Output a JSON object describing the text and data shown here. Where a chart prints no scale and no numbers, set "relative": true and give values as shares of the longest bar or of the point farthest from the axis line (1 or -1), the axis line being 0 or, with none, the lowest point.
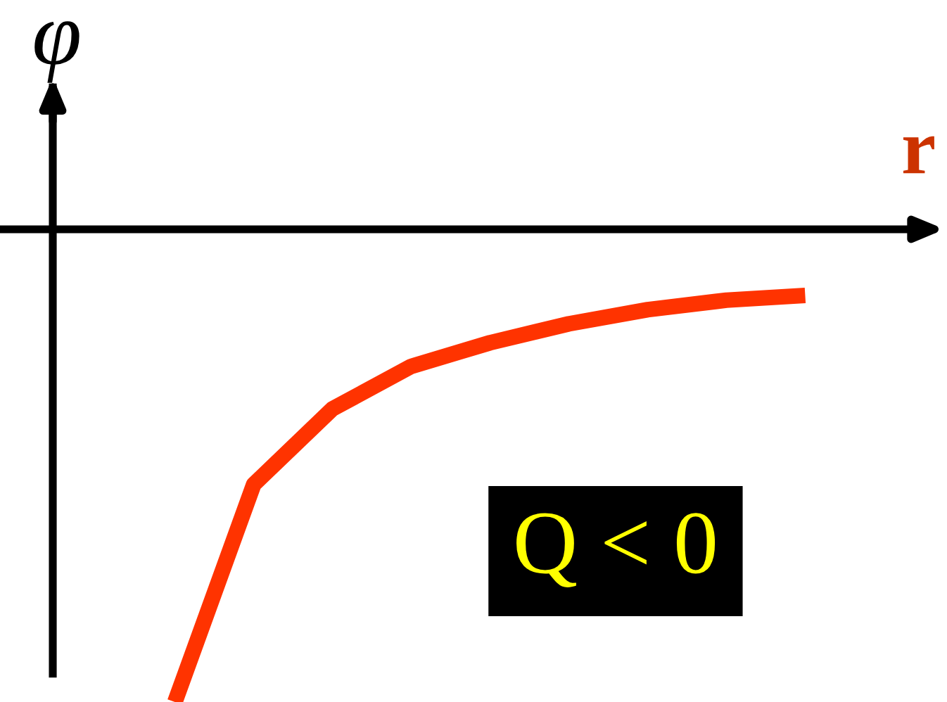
{
  "chart_data": {
    "type": "line",
    "relative": true,
    "xlabel": "r",
    "ylabel": "φ",
    "categories": [
      null,
      null,
      null,
      null,
      null,
      null,
      null,
      null,
      null
    ],
    "series": [
      {
        "color": "#ff3300",
        "values": [
          -1,
          -0.54,
          -0.38,
          -0.29,
          -0.24,
          -0.2,
          -0.17,
          -0.15,
          -0.14
        ]
      }
    ],
    "annotations": [
      "Q < 0"
    ],
    "legend": false,
    "marker": "none",
    "line_style": "solid"
  }
}
